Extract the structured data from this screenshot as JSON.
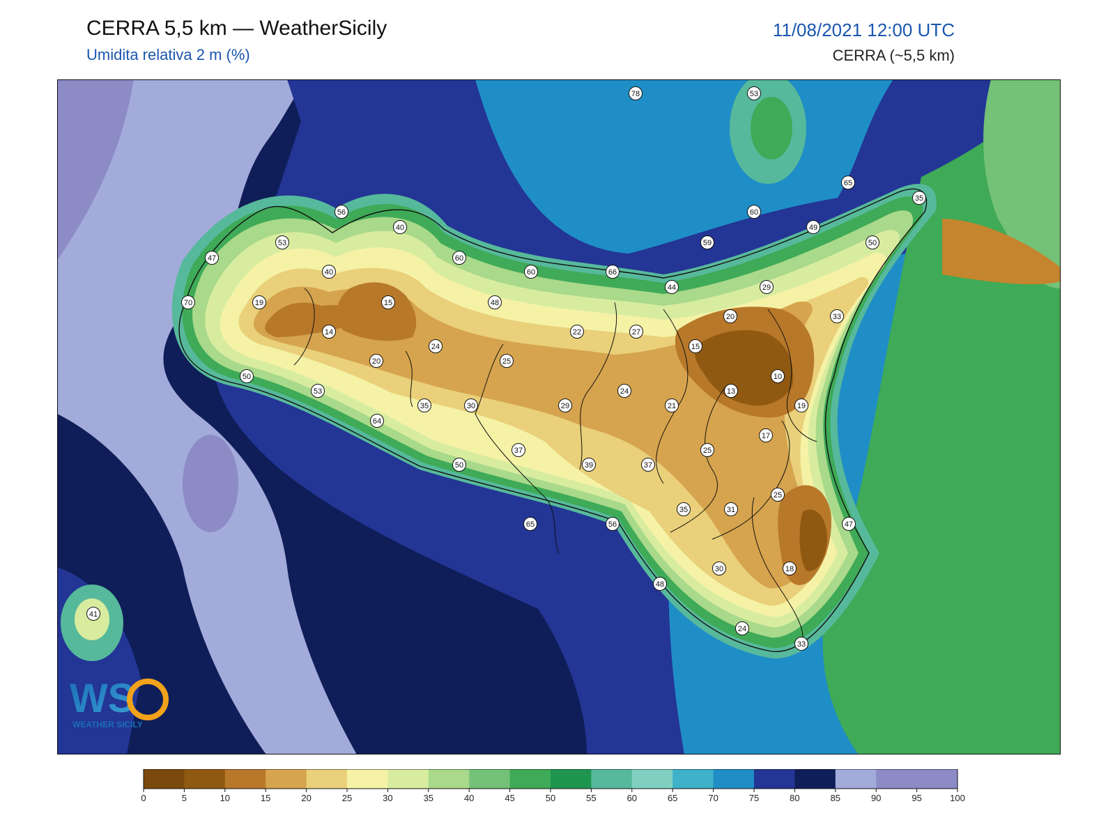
{
  "header": {
    "title": "CERRA 5,5 km — WeatherSicily",
    "subtitle": "Umidita relativa 2 m (%)",
    "datetime": "11/08/2021 12:00 UTC",
    "model": "CERRA (~5,5 km)"
  },
  "logo": {
    "text": "WS",
    "caption": "WEATHER SICILY"
  },
  "colorbar": {
    "ticks": [
      "0",
      "5",
      "10",
      "15",
      "20",
      "25",
      "30",
      "35",
      "40",
      "45",
      "50",
      "55",
      "60",
      "65",
      "70",
      "75",
      "80",
      "85",
      "90",
      "95",
      "100"
    ],
    "colors": [
      "#7a4a0c",
      "#8f5912",
      "#b8782a",
      "#d6a44e",
      "#ead07a",
      "#f5f2a6",
      "#d8eca0",
      "#a9d98a",
      "#74c277",
      "#3faa57",
      "#1f9650",
      "#57b99b",
      "#80cfc0",
      "#3fb1c8",
      "#1f8ec6",
      "#233595",
      "#0f1e58",
      "#a3abdb",
      "#8c8bc6",
      "#8c8bc6"
    ]
  },
  "stations": [
    {
      "label": "78"
    },
    {
      "label": "53"
    },
    {
      "label": "65"
    },
    {
      "label": "35"
    },
    {
      "label": "60"
    },
    {
      "label": "49"
    },
    {
      "label": "50"
    },
    {
      "label": "56"
    },
    {
      "label": "40"
    },
    {
      "label": "53"
    },
    {
      "label": "47"
    },
    {
      "label": "40"
    },
    {
      "label": "60"
    },
    {
      "label": "60"
    },
    {
      "label": "66"
    },
    {
      "label": "59"
    },
    {
      "label": "44"
    },
    {
      "label": "29"
    },
    {
      "label": "70"
    },
    {
      "label": "19"
    },
    {
      "label": "15"
    },
    {
      "label": "48"
    },
    {
      "label": "20"
    },
    {
      "label": "33"
    },
    {
      "label": "14"
    },
    {
      "label": "24"
    },
    {
      "label": "22"
    },
    {
      "label": "27"
    },
    {
      "label": "15"
    },
    {
      "label": "20"
    },
    {
      "label": "25"
    },
    {
      "label": "10"
    },
    {
      "label": "50"
    },
    {
      "label": "53"
    },
    {
      "label": "35"
    },
    {
      "label": "30"
    },
    {
      "label": "29"
    },
    {
      "label": "24"
    },
    {
      "label": "21"
    },
    {
      "label": "13"
    },
    {
      "label": "19"
    },
    {
      "label": "64"
    },
    {
      "label": "17"
    },
    {
      "label": "37"
    },
    {
      "label": "25"
    },
    {
      "label": "50"
    },
    {
      "label": "39"
    },
    {
      "label": "37"
    },
    {
      "label": "25"
    },
    {
      "label": "35"
    },
    {
      "label": "31"
    },
    {
      "label": "65"
    },
    {
      "label": "56"
    },
    {
      "label": "47"
    },
    {
      "label": "30"
    },
    {
      "label": "18"
    },
    {
      "label": "48"
    },
    {
      "label": "24"
    },
    {
      "label": "33"
    },
    {
      "label": "41"
    }
  ]
}
